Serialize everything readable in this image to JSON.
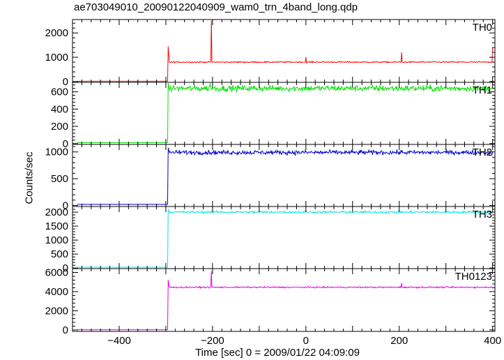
{
  "chart_data": {
    "type": "line",
    "title": "ae703049010_20090122040909_wam0_trn_4band_long.qdp",
    "xlabel": "Time [sec] 0 = 2009/01/22 04:09:09",
    "ylabel": "Counts/sec",
    "xlim": [
      -500,
      405
    ],
    "xticks": [
      -400,
      -200,
      0,
      200,
      400
    ],
    "panels": [
      {
        "name": "TH0",
        "color": "#ff0000",
        "ylim": [
          -30,
          2550
        ],
        "yticks": [
          0,
          1000,
          2000
        ],
        "pre_level": 15,
        "trigger_x": -295,
        "post_level": 800,
        "noise": 25,
        "trigger_spike": 1450,
        "spikes": [
          {
            "x": -202,
            "y": 2500
          },
          {
            "x": 0,
            "y": 1000
          },
          {
            "x": 205,
            "y": 1200
          },
          {
            "x": 400,
            "y": 1400
          }
        ]
      },
      {
        "name": "TH1",
        "color": "#00e000",
        "ylim": [
          -10,
          710
        ],
        "yticks": [
          0,
          200,
          400,
          600
        ],
        "pre_level": 10,
        "trigger_x": -295,
        "post_level": 640,
        "noise": 35,
        "trigger_spike": 700,
        "spikes": [
          {
            "x": -205,
            "y": 710
          }
        ]
      },
      {
        "name": "TH2",
        "color": "#0000cc",
        "ylim": [
          -20,
          1140
        ],
        "yticks": [
          0,
          500,
          1000
        ],
        "pre_level": 20,
        "trigger_x": -295,
        "post_level": 990,
        "noise": 40,
        "trigger_spike": 1080,
        "spikes": []
      },
      {
        "name": "TH3",
        "color": "#00e5e5",
        "ylim": [
          -20,
          2200
        ],
        "yticks": [
          0,
          500,
          1000,
          1500,
          2000
        ],
        "pre_level": 30,
        "trigger_x": -295,
        "post_level": 2000,
        "noise": 40,
        "trigger_spike": 2100,
        "spikes": []
      },
      {
        "name": "TH0123",
        "color": "#e600e6",
        "ylim": [
          -150,
          6400
        ],
        "yticks": [
          0,
          2000,
          4000,
          6000
        ],
        "pre_level": 20,
        "trigger_x": -295,
        "post_level": 4450,
        "noise": 70,
        "trigger_spike": 5200,
        "spikes": [
          {
            "x": -202,
            "y": 6100
          },
          {
            "x": 205,
            "y": 4900
          }
        ]
      }
    ]
  }
}
